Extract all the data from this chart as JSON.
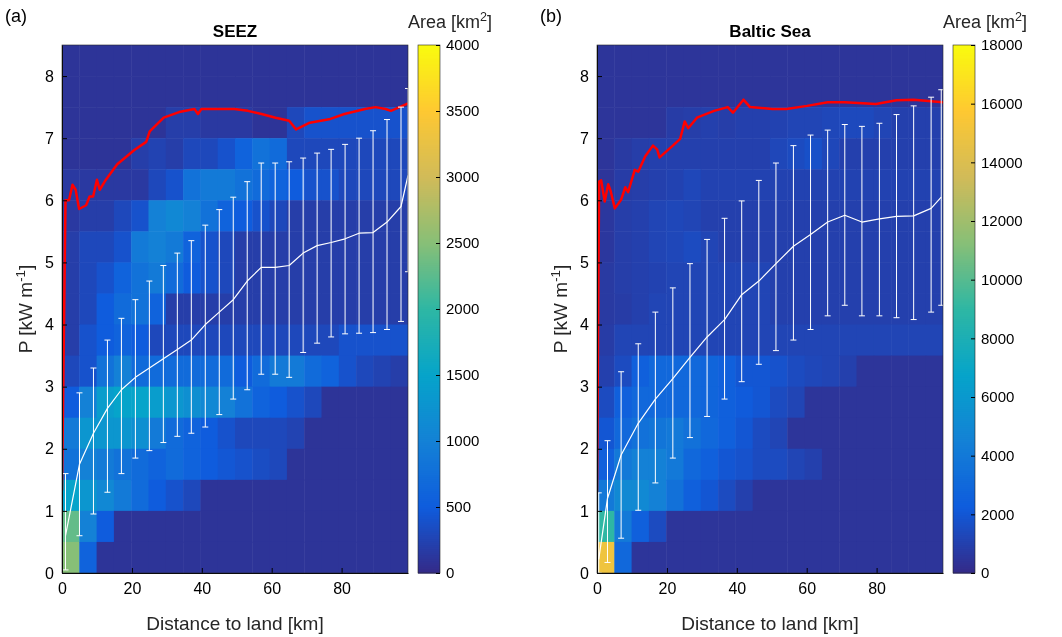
{
  "chart_data": [
    {
      "type": "heatmap",
      "title": "SEEZ",
      "annotations": [
        "(a)"
      ],
      "xlabel": "Distance to land [km]",
      "ylabel": "P [kW m$^{-1}$]",
      "clabel": "Area [km$^{2}$]",
      "xlim": [
        0,
        99
      ],
      "ylim": [
        0,
        8.5
      ],
      "xticks": [
        0,
        20,
        40,
        60,
        80
      ],
      "yticks": [
        0,
        1,
        2,
        3,
        4,
        5,
        6,
        7,
        8
      ],
      "clim": [
        0,
        4000
      ],
      "cticks": [
        0,
        500,
        1000,
        1500,
        2000,
        2500,
        3000,
        3500,
        4000
      ],
      "x": [
        2.475,
        7.425,
        12.375,
        17.325,
        22.275,
        27.225,
        32.175,
        37.125,
        42.075,
        47.025,
        51.975,
        56.925,
        61.875,
        66.825,
        71.775,
        76.725,
        81.675,
        86.625,
        91.575,
        96.525
      ],
      "y": [
        8.25,
        7.75,
        7.25,
        6.75,
        6.25,
        5.75,
        5.25,
        4.75,
        4.25,
        3.75,
        3.25,
        2.75,
        2.25,
        1.75,
        1.25,
        0.75,
        0.25
      ],
      "cells": [
        [
          100,
          100,
          100,
          100,
          100,
          100,
          100,
          100,
          100,
          100,
          100,
          100,
          100,
          100,
          100,
          100,
          100,
          100,
          100,
          100
        ],
        [
          100,
          100,
          100,
          100,
          100,
          100,
          100,
          100,
          100,
          100,
          100,
          100,
          100,
          100,
          100,
          100,
          100,
          100,
          100,
          100
        ],
        [
          100,
          100,
          100,
          100,
          100,
          100,
          200,
          200,
          150,
          150,
          150,
          100,
          100,
          300,
          400,
          400,
          400,
          400,
          400,
          400
        ],
        [
          100,
          100,
          100,
          100,
          200,
          250,
          200,
          300,
          300,
          400,
          600,
          800,
          700,
          300,
          300,
          300,
          300,
          300,
          300,
          300
        ],
        [
          150,
          150,
          150,
          150,
          150,
          300,
          400,
          800,
          900,
          900,
          800,
          700,
          600,
          500,
          400,
          400,
          300,
          300,
          300,
          300
        ],
        [
          150,
          200,
          200,
          300,
          400,
          1000,
          1100,
          1000,
          800,
          600,
          500,
          400,
          300,
          200,
          200,
          200,
          200,
          200,
          200,
          200
        ],
        [
          200,
          300,
          300,
          400,
          900,
          1000,
          900,
          600,
          400,
          300,
          200,
          200,
          200,
          200,
          200,
          200,
          200,
          200,
          200,
          200
        ],
        [
          200,
          300,
          400,
          600,
          800,
          900,
          700,
          500,
          400,
          300,
          200,
          200,
          200,
          200,
          200,
          200,
          200,
          200,
          200,
          200
        ],
        [
          200,
          300,
          500,
          700,
          800,
          600,
          200,
          200,
          200,
          200,
          200,
          200,
          200,
          200,
          200,
          200,
          200,
          200,
          200,
          200
        ],
        [
          200,
          400,
          500,
          600,
          500,
          300,
          300,
          300,
          300,
          300,
          300,
          300,
          300,
          300,
          300,
          300,
          400,
          400,
          400,
          400
        ],
        [
          300,
          400,
          800,
          1000,
          700,
          700,
          700,
          700,
          700,
          700,
          500,
          700,
          900,
          900,
          700,
          600,
          400,
          300,
          250,
          200
        ],
        [
          500,
          1000,
          1400,
          1500,
          1500,
          1400,
          1300,
          1200,
          1100,
          1000,
          800,
          600,
          500,
          400,
          300,
          100,
          100,
          100,
          100,
          100
        ],
        [
          900,
          1300,
          1300,
          1300,
          1200,
          900,
          700,
          600,
          500,
          400,
          300,
          300,
          300,
          250,
          100,
          100,
          100,
          100,
          100,
          100
        ],
        [
          800,
          1000,
          900,
          800,
          700,
          600,
          700,
          600,
          500,
          450,
          400,
          350,
          300,
          100,
          100,
          100,
          100,
          100,
          100,
          100
        ],
        [
          1500,
          1300,
          1100,
          900,
          700,
          500,
          400,
          300,
          100,
          100,
          100,
          100,
          100,
          100,
          100,
          100,
          100,
          100,
          100,
          100
        ],
        [
          2300,
          1000,
          500,
          100,
          100,
          100,
          100,
          100,
          100,
          100,
          100,
          100,
          100,
          100,
          100,
          100,
          100,
          100,
          100,
          100
        ],
        [
          2500,
          600,
          100,
          100,
          100,
          100,
          100,
          100,
          100,
          100,
          100,
          100,
          100,
          100,
          100,
          100,
          100,
          100,
          100,
          100
        ]
      ],
      "series": [
        {
          "type": "line",
          "color": "#ff0000",
          "x": [
            0,
            1,
            2,
            3,
            3.9,
            4.9,
            6.9,
            7.9,
            8.9,
            10,
            10.8,
            12.3,
            15.8,
            20.7,
            24.1,
            25.1,
            29.1,
            33.5,
            37.9,
            38.9,
            39.9,
            45.3,
            49.3,
            53.2,
            57.1,
            61.1,
            65,
            67,
            70.9,
            76.8,
            80.8,
            86.7,
            89.7,
            92.6,
            94.1,
            96.6,
            99
          ],
          "values": [
            1.33,
            6.0,
            6.0,
            6.25,
            6.17,
            5.86,
            5.92,
            6.06,
            6.06,
            6.33,
            6.17,
            6.31,
            6.58,
            6.81,
            6.94,
            7.11,
            7.33,
            7.42,
            7.47,
            7.39,
            7.47,
            7.47,
            7.47,
            7.44,
            7.39,
            7.33,
            7.28,
            7.14,
            7.25,
            7.31,
            7.39,
            7.47,
            7.5,
            7.47,
            7.44,
            7.5,
            7.56
          ]
        },
        {
          "type": "line",
          "color": "#ffffff",
          "x": [
            1,
            5,
            9,
            13,
            17,
            21,
            25,
            29,
            33,
            37,
            41,
            45,
            49,
            53,
            57,
            61,
            65,
            69,
            73,
            77,
            81,
            85,
            89,
            93,
            97,
            99
          ],
          "values": [
            0.6,
            1.75,
            2.25,
            2.65,
            2.95,
            3.15,
            3.3,
            3.45,
            3.6,
            3.75,
            4.0,
            4.2,
            4.4,
            4.7,
            4.92,
            4.92,
            4.95,
            5.15,
            5.27,
            5.32,
            5.38,
            5.47,
            5.48,
            5.65,
            5.9,
            6.4
          ],
          "errors": [
            [
              0.05,
              1.6
            ],
            [
              0.6,
              2.9
            ],
            [
              0.95,
              3.3
            ],
            [
              1.3,
              3.75
            ],
            [
              1.6,
              4.1
            ],
            [
              1.85,
              4.4
            ],
            [
              1.97,
              4.7
            ],
            [
              2.1,
              4.95
            ],
            [
              2.2,
              5.15
            ],
            [
              2.25,
              5.35
            ],
            [
              2.35,
              5.6
            ],
            [
              2.55,
              5.85
            ],
            [
              2.8,
              6.05
            ],
            [
              2.95,
              6.3
            ],
            [
              3.2,
              6.6
            ],
            [
              3.2,
              6.6
            ],
            [
              3.15,
              6.62
            ],
            [
              3.55,
              6.68
            ],
            [
              3.7,
              6.76
            ],
            [
              3.8,
              6.82
            ],
            [
              3.85,
              6.9
            ],
            [
              3.86,
              7.0
            ],
            [
              3.87,
              7.12
            ],
            [
              3.92,
              7.3
            ],
            [
              4.05,
              7.5
            ],
            [
              4.85,
              7.8
            ]
          ]
        }
      ]
    },
    {
      "type": "heatmap",
      "title": "Baltic Sea",
      "annotations": [
        "(b)"
      ],
      "xlabel": "Distance to land [km]",
      "ylabel": "P [kW m$^{-1}$]",
      "clabel": "Area [km$^{2}$]",
      "xlim": [
        0,
        99
      ],
      "ylim": [
        0,
        8.5
      ],
      "xticks": [
        0,
        20,
        40,
        60,
        80
      ],
      "yticks": [
        0,
        1,
        2,
        3,
        4,
        5,
        6,
        7,
        8
      ],
      "clim": [
        0,
        18000
      ],
      "cticks": [
        0,
        2000,
        4000,
        6000,
        8000,
        10000,
        12000,
        14000,
        16000,
        18000
      ],
      "x": [
        2.475,
        7.425,
        12.375,
        17.325,
        22.275,
        27.225,
        32.175,
        37.125,
        42.075,
        47.025,
        51.975,
        56.925,
        61.875,
        66.825,
        71.775,
        76.725,
        81.675,
        86.625,
        91.575,
        96.525
      ],
      "y": [
        8.25,
        7.75,
        7.25,
        6.75,
        6.25,
        5.75,
        5.25,
        4.75,
        4.25,
        3.75,
        3.25,
        2.75,
        2.25,
        1.75,
        1.25,
        0.75,
        0.25
      ],
      "cells": [
        [
          500,
          500,
          500,
          500,
          500,
          500,
          500,
          500,
          500,
          500,
          500,
          500,
          500,
          500,
          500,
          500,
          500,
          500,
          500,
          500
        ],
        [
          500,
          500,
          500,
          500,
          500,
          500,
          500,
          500,
          500,
          500,
          500,
          500,
          500,
          500,
          500,
          500,
          500,
          500,
          500,
          500
        ],
        [
          500,
          500,
          500,
          500,
          800,
          900,
          1000,
          900,
          1000,
          1000,
          1100,
          1200,
          1200,
          1300,
          1400,
          1400,
          1200,
          1000,
          1000,
          1000
        ],
        [
          500,
          700,
          900,
          1000,
          1000,
          1000,
          1000,
          1000,
          1000,
          1000,
          1300,
          1500,
          1700,
          1300,
          1000,
          1000,
          1000,
          1000,
          1000,
          1000
        ],
        [
          500,
          800,
          900,
          1000,
          1100,
          1300,
          1100,
          1100,
          1100,
          1100,
          1100,
          1100,
          1100,
          1100,
          1100,
          1100,
          1100,
          1100,
          1100,
          1100
        ],
        [
          600,
          900,
          1000,
          1200,
          1300,
          1200,
          1000,
          1000,
          1000,
          1000,
          1000,
          1000,
          1000,
          1000,
          1000,
          1000,
          1000,
          1000,
          1000,
          1000
        ],
        [
          600,
          900,
          1000,
          1200,
          1300,
          1500,
          1200,
          1000,
          1000,
          1000,
          1000,
          1000,
          1000,
          1000,
          1000,
          1000,
          1000,
          1000,
          1000,
          1000
        ],
        [
          700,
          900,
          1000,
          1100,
          1200,
          1200,
          1200,
          1200,
          1200,
          1200,
          1000,
          1000,
          1000,
          1000,
          1000,
          1000,
          1000,
          1000,
          1000,
          1000
        ],
        [
          700,
          800,
          1000,
          1200,
          1200,
          1200,
          1200,
          1200,
          1200,
          1200,
          1000,
          1000,
          1000,
          1000,
          1000,
          1000,
          1000,
          1000,
          1000,
          1000
        ],
        [
          800,
          1200,
          1200,
          1200,
          1200,
          1200,
          1200,
          1200,
          1200,
          1200,
          1200,
          1200,
          1200,
          1200,
          1200,
          1200,
          1200,
          1200,
          1200,
          1200
        ],
        [
          1000,
          1500,
          2500,
          3000,
          3000,
          3000,
          2800,
          2500,
          2000,
          2000,
          1800,
          1500,
          1300,
          1200,
          1000,
          500,
          500,
          500,
          500,
          500
        ],
        [
          1500,
          2500,
          3000,
          3000,
          3000,
          3000,
          2800,
          2500,
          2200,
          2000,
          1500,
          1200,
          500,
          500,
          500,
          500,
          500,
          500,
          500,
          500
        ],
        [
          2000,
          3000,
          3500,
          3800,
          4000,
          3500,
          3000,
          2500,
          2000,
          1500,
          1200,
          500,
          500,
          500,
          500,
          500,
          500,
          500,
          500,
          500
        ],
        [
          2500,
          4000,
          4500,
          4500,
          4000,
          3000,
          2500,
          2000,
          1800,
          1500,
          1500,
          1200,
          1000,
          500,
          500,
          500,
          500,
          500,
          500,
          500
        ],
        [
          4000,
          5000,
          5000,
          4500,
          3500,
          2500,
          2000,
          1500,
          1000,
          500,
          500,
          500,
          500,
          500,
          500,
          500,
          500,
          500,
          500,
          500
        ],
        [
          9000,
          4000,
          2500,
          1500,
          500,
          500,
          500,
          500,
          500,
          500,
          500,
          500,
          500,
          500,
          500,
          500,
          500,
          500,
          500,
          500
        ],
        [
          15000,
          3000,
          500,
          500,
          500,
          500,
          500,
          500,
          500,
          500,
          500,
          500,
          500,
          500,
          500,
          500,
          500,
          500,
          500,
          500
        ]
      ],
      "series": [
        {
          "type": "line",
          "color": "#ff0000",
          "x": [
            0,
            0.6,
            1.2,
            2.2,
            3.2,
            3.9,
            5.1,
            6.9,
            8.1,
            8.9,
            10.8,
            11.8,
            13.8,
            16,
            17.2,
            17.9,
            21.7,
            23.8,
            25.1,
            26.1,
            28.6,
            33.5,
            37.4,
            38.9,
            41.9,
            43.8,
            50.2,
            54.2,
            60.1,
            66,
            70.9,
            79.8,
            85.7,
            90.6,
            99
          ],
          "values": [
            1.3,
            6.3,
            6.32,
            5.98,
            6.26,
            6.15,
            5.87,
            6.01,
            6.21,
            6.13,
            6.49,
            6.46,
            6.71,
            6.88,
            6.82,
            6.69,
            6.88,
            6.99,
            7.27,
            7.16,
            7.33,
            7.44,
            7.5,
            7.41,
            7.62,
            7.5,
            7.47,
            7.47,
            7.52,
            7.58,
            7.58,
            7.55,
            7.61,
            7.62,
            7.58
          ]
        },
        {
          "type": "line",
          "color": "#ffffff",
          "x": [
            0.5,
            3,
            6.9,
            11.8,
            16.7,
            21.7,
            26.6,
            31.5,
            36.5,
            41.4,
            46.3,
            51.2,
            56.2,
            61.1,
            66,
            70.9,
            75.8,
            80.8,
            85.7,
            90.6,
            95.6,
            98.5
          ],
          "values": [
            0.22,
            1.2,
            1.9,
            2.41,
            2.8,
            3.13,
            3.47,
            3.8,
            4.08,
            4.48,
            4.7,
            4.98,
            5.26,
            5.45,
            5.65,
            5.76,
            5.65,
            5.7,
            5.74,
            5.75,
            5.87,
            6.05
          ],
          "errors": [
            [
              0,
              1.29
            ],
            [
              0.17,
              2.13
            ],
            [
              0.56,
              3.24
            ],
            [
              1.01,
              3.69
            ],
            [
              1.45,
              4.2
            ],
            [
              1.85,
              4.59
            ],
            [
              2.18,
              4.98
            ],
            [
              2.52,
              5.37
            ],
            [
              2.8,
              5.71
            ],
            [
              3.08,
              5.99
            ],
            [
              3.36,
              6.32
            ],
            [
              3.58,
              6.6
            ],
            [
              3.75,
              6.88
            ],
            [
              3.92,
              7.05
            ],
            [
              4.14,
              7.13
            ],
            [
              4.31,
              7.22
            ],
            [
              4.14,
              7.19
            ],
            [
              4.14,
              7.24
            ],
            [
              4.11,
              7.38
            ],
            [
              4.08,
              7.52
            ],
            [
              4.2,
              7.66
            ],
            [
              4.31,
              7.78
            ]
          ]
        }
      ]
    }
  ]
}
